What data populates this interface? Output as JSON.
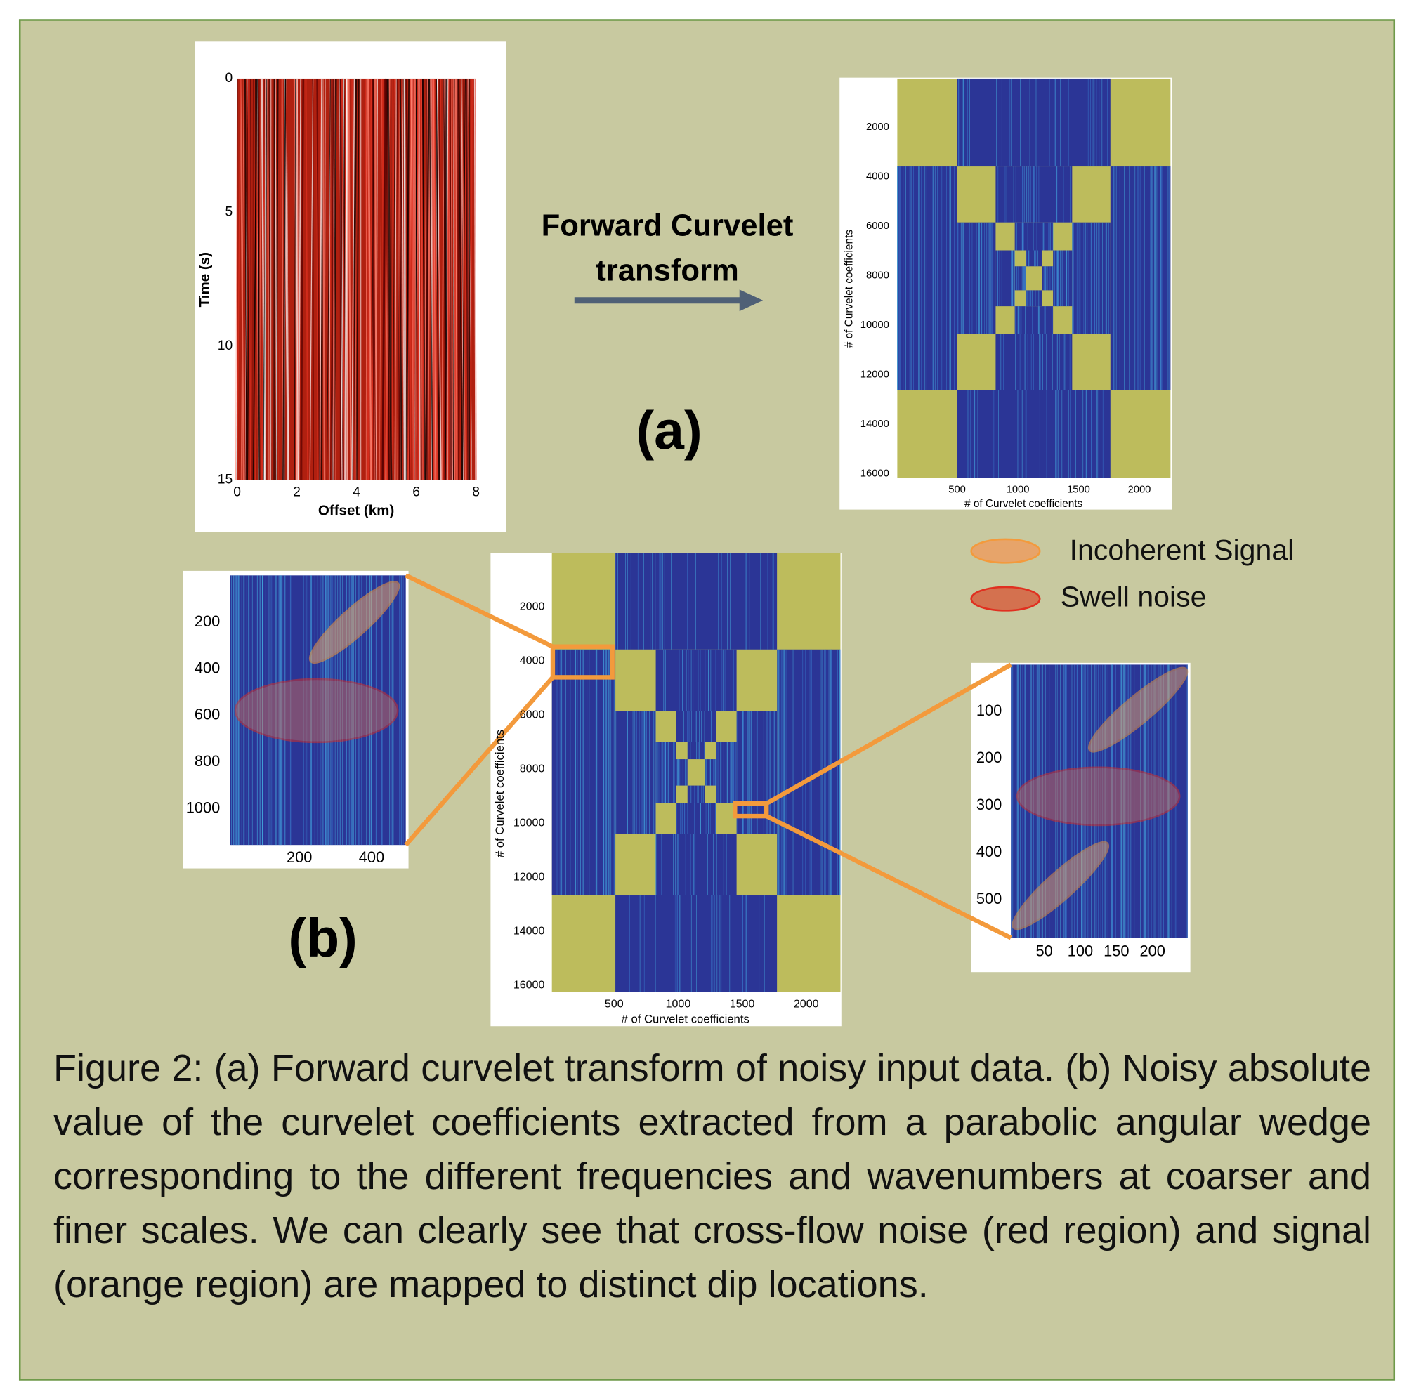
{
  "panel_a": {
    "label": "(a)",
    "arrow_text": [
      "Forward Curvelet",
      "transform"
    ],
    "seismic": {
      "ylabel": "Time (s)",
      "xlabel": "Offset (km)",
      "yticks": [
        0,
        5,
        10,
        15
      ],
      "xticks": [
        0,
        2,
        4,
        6,
        8
      ]
    },
    "curvelet": {
      "ylabel": "# of Curvelet coefficients",
      "xlabel": "# of Curvelet coefficients",
      "yticks": [
        2000,
        4000,
        6000,
        8000,
        10000,
        12000,
        14000,
        16000
      ],
      "xticks": [
        500,
        1000,
        1500,
        2000
      ]
    }
  },
  "panel_b": {
    "label": "(b)",
    "zoom_left": {
      "yticks": [
        200,
        400,
        600,
        800,
        1000
      ],
      "xticks": [
        200,
        400
      ]
    },
    "curvelet": {
      "ylabel": "# of Curvelet coefficients",
      "xlabel": "# of Curvelet coefficients",
      "yticks": [
        2000,
        4000,
        6000,
        8000,
        10000,
        12000,
        14000,
        16000
      ],
      "xticks": [
        500,
        1000,
        1500,
        2000
      ]
    },
    "zoom_right": {
      "yticks": [
        100,
        200,
        300,
        400,
        500
      ],
      "xticks": [
        50,
        100,
        150,
        200
      ]
    }
  },
  "legend": [
    {
      "label": "Incoherent Signal"
    },
    {
      "label": "Swell noise"
    }
  ],
  "caption": "Figure 2: (a) Forward curvelet transform of noisy input data. (b) Noisy absolute value of the curvelet coefficients extracted from a parabolic angular wedge corresponding to the different frequencies and wavenumbers at coarser and finer scales. We can clearly see that cross-flow noise (red region) and signal (orange region) are mapped to distinct dip locations."
}
